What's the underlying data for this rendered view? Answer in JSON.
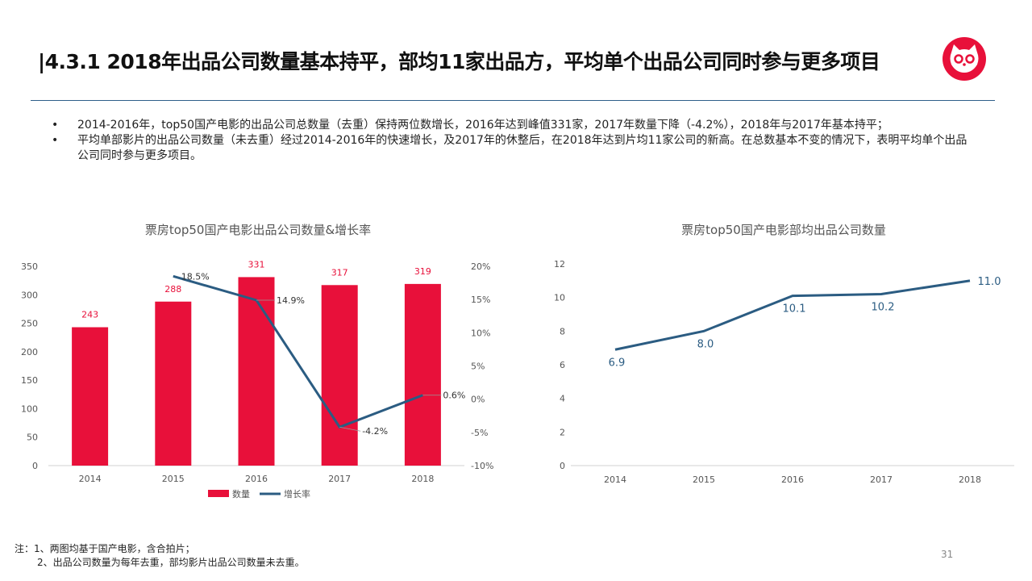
{
  "title": "|4.3.1 2018年出品公司数量基本持平，部均11家出品方，平均单个出品公司同时参与更多项目",
  "bullets": [
    "2014-2016年，top50国产电影的出品公司总数量（去重）保持两位数增长，2016年达到峰值331家，2017年数量下降（-4.2%），2018年与2017年基本持平；",
    "平均单部影片的出品公司数量（未去重）经过2014-2016年的快速增长，及2017年的休整后，在2018年达到片均11家公司的新高。在总数基本不变的情况下，表明平均单个出品公司同时参与更多项目。"
  ],
  "bullet_symbol": "•",
  "chart_data": [
    {
      "type": "bar",
      "title": "票房top50国产电影出品公司数量&增长率",
      "categories": [
        "2014",
        "2015",
        "2016",
        "2017",
        "2018"
      ],
      "series": [
        {
          "name": "数量",
          "type": "bar",
          "axis": "left",
          "values": [
            243,
            288,
            331,
            317,
            319
          ],
          "labels": [
            "243",
            "288",
            "331",
            "317",
            "319"
          ],
          "color": "#e8103a"
        },
        {
          "name": "增长率",
          "type": "line",
          "axis": "right",
          "values": [
            null,
            18.5,
            14.9,
            -4.2,
            0.6
          ],
          "labels": [
            "",
            "18.5%",
            "14.9%",
            "-4.2%",
            "0.6%"
          ],
          "color": "#2b5c82"
        }
      ],
      "ylim": [
        0,
        350
      ],
      "yticks": [
        "0",
        "50",
        "100",
        "150",
        "200",
        "250",
        "300",
        "350"
      ],
      "y2lim": [
        -10,
        20
      ],
      "y2ticks": [
        "-10%",
        "-5%",
        "0%",
        "5%",
        "10%",
        "15%",
        "20%"
      ],
      "legend": "bottom"
    },
    {
      "type": "line",
      "title": "票房top50国产电影部均出品公司数量",
      "categories": [
        "2014",
        "2015",
        "2016",
        "2017",
        "2018"
      ],
      "series": [
        {
          "name": "部均出品公司数量",
          "values": [
            6.9,
            8.0,
            10.1,
            10.2,
            11.0
          ],
          "labels": [
            "6.9",
            "8.0",
            "10.1",
            "10.2",
            "11.0"
          ],
          "color": "#2b5c82"
        }
      ],
      "ylim": [
        0,
        12
      ],
      "yticks": [
        "0",
        "2",
        "4",
        "6",
        "8",
        "10",
        "12"
      ]
    }
  ],
  "notes": [
    "注：1、两图均基于国产电影，含合拍片；",
    "2、出品公司数量为每年去重，部均影片出品公司数量未去重。"
  ],
  "page_number": "31",
  "colors": {
    "accent_red": "#e8103a",
    "line_blue": "#2b5c82",
    "divider": "#2f5f8a"
  }
}
